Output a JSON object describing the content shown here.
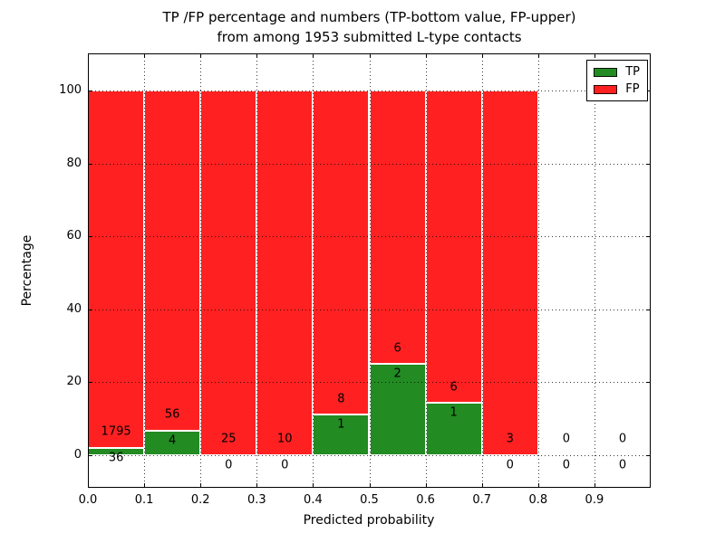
{
  "figure": {
    "title_line1": "TP /FP percentage and numbers (TP-bottom value, FP-upper)",
    "title_line2": "from among 1953 submitted L-type contacts"
  },
  "axes": {
    "ylabel": "Percentage",
    "xlabel": "Predicted probability"
  },
  "legend": {
    "items": [
      {
        "label": "TP",
        "color": "#228b22"
      },
      {
        "label": "FP",
        "color": "#ff2121"
      }
    ]
  },
  "colors": {
    "tp_green": "#228b22",
    "fp_red": "#ff2121",
    "grid": "#000000",
    "background": "#ffffff"
  },
  "chart_data": {
    "type": "bar",
    "stacked": true,
    "title": "TP /FP percentage and numbers (TP-bottom value, FP-upper) from among 1953 submitted L-type contacts",
    "xlabel": "Predicted probability",
    "ylabel": "Percentage",
    "xlim": [
      0.0,
      1.0
    ],
    "ylim": [
      -9,
      110
    ],
    "grid": "dotted black, drawn above bars",
    "legend_position": "upper right",
    "x_tick_labels": [
      "0.0",
      "0.1",
      "0.2",
      "0.3",
      "0.4",
      "0.5",
      "0.6",
      "0.7",
      "0.8",
      "0.9"
    ],
    "y_tick_values": [
      0,
      20,
      40,
      60,
      80,
      100
    ],
    "series": [
      {
        "name": "TP",
        "color": "#228b22",
        "position": "bottom"
      },
      {
        "name": "FP",
        "color": "#ff2121",
        "position": "top"
      }
    ],
    "bins": [
      {
        "x_range": [
          0.0,
          0.1
        ],
        "tp_count": 36,
        "fp_count": 1795,
        "tp_pct": 1.97,
        "fp_pct": 98.03,
        "bar_drawn": true
      },
      {
        "x_range": [
          0.1,
          0.2
        ],
        "tp_count": 4,
        "fp_count": 56,
        "tp_pct": 6.67,
        "fp_pct": 93.33,
        "bar_drawn": true
      },
      {
        "x_range": [
          0.2,
          0.3
        ],
        "tp_count": 0,
        "fp_count": 25,
        "tp_pct": 0,
        "fp_pct": 100,
        "bar_drawn": true
      },
      {
        "x_range": [
          0.3,
          0.4
        ],
        "tp_count": 0,
        "fp_count": 10,
        "tp_pct": 0,
        "fp_pct": 100,
        "bar_drawn": true
      },
      {
        "x_range": [
          0.4,
          0.5
        ],
        "tp_count": 1,
        "fp_count": 8,
        "tp_pct": 11.11,
        "fp_pct": 88.89,
        "bar_drawn": true
      },
      {
        "x_range": [
          0.5,
          0.6
        ],
        "tp_count": 2,
        "fp_count": 6,
        "tp_pct": 25,
        "fp_pct": 75,
        "bar_drawn": true
      },
      {
        "x_range": [
          0.6,
          0.7
        ],
        "tp_count": 1,
        "fp_count": 6,
        "tp_pct": 14.29,
        "fp_pct": 85.71,
        "bar_drawn": true
      },
      {
        "x_range": [
          0.7,
          0.8
        ],
        "tp_count": 0,
        "fp_count": 3,
        "tp_pct": 0,
        "fp_pct": 100,
        "bar_drawn": true
      },
      {
        "x_range": [
          0.8,
          0.9
        ],
        "tp_count": 0,
        "fp_count": 0,
        "tp_pct": null,
        "fp_pct": null,
        "bar_drawn": false
      },
      {
        "x_range": [
          0.9,
          1.0
        ],
        "tp_count": 0,
        "fp_count": 0,
        "tp_pct": null,
        "fp_pct": null,
        "bar_drawn": false
      }
    ]
  }
}
